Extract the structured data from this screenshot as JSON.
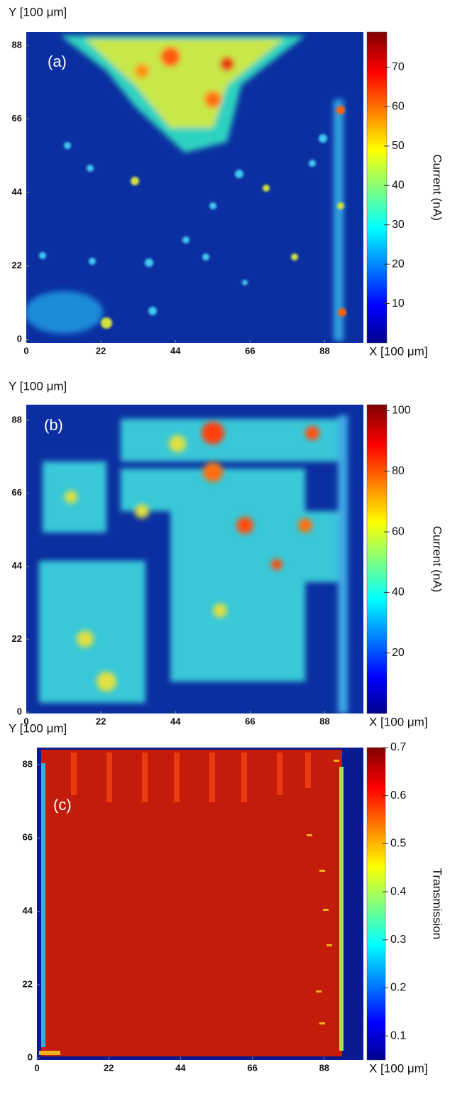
{
  "chart_data": [
    {
      "type": "heatmap",
      "panel_label": "(a)",
      "y_label": "Y  [100 μm]",
      "x_label": "X [100 μm]",
      "colorbar_label": "Current (nA)",
      "xlim": [
        0,
        99.4
      ],
      "ylim": [
        -1,
        92
      ],
      "xticks": [
        0,
        22,
        44,
        66,
        88
      ],
      "yticks": [
        0,
        22,
        44,
        66,
        88
      ],
      "clim": [
        0,
        79
      ],
      "cticks": [
        10,
        20,
        30,
        40,
        50,
        60,
        70
      ]
    },
    {
      "type": "heatmap",
      "panel_label": "(b)",
      "y_label": "Y  [100 μm]",
      "x_label": "X [100 μm]",
      "colorbar_label": "Current (nA)",
      "xlim": [
        0,
        99.4
      ],
      "ylim": [
        -0.4,
        92.7
      ],
      "xticks": [
        0,
        22,
        44,
        66,
        88
      ],
      "yticks": [
        0,
        22,
        44,
        66,
        88
      ],
      "clim": [
        0,
        102
      ],
      "cticks": [
        20,
        40,
        60,
        80,
        100
      ]
    },
    {
      "type": "heatmap",
      "panel_label": "(c)",
      "y_label": "Y  [100 μm]",
      "x_label": "X [100 μm]",
      "colorbar_label": "Transmission",
      "xlim": [
        0,
        100
      ],
      "ylim": [
        -0.6,
        93.1
      ],
      "xticks": [
        0,
        22,
        44,
        66,
        88
      ],
      "yticks": [
        0,
        22,
        44,
        66,
        88
      ],
      "clim": [
        0.05,
        0.7
      ],
      "cticks": [
        0.1,
        0.2,
        0.3,
        0.4,
        0.5,
        0.6,
        0.7
      ]
    }
  ]
}
